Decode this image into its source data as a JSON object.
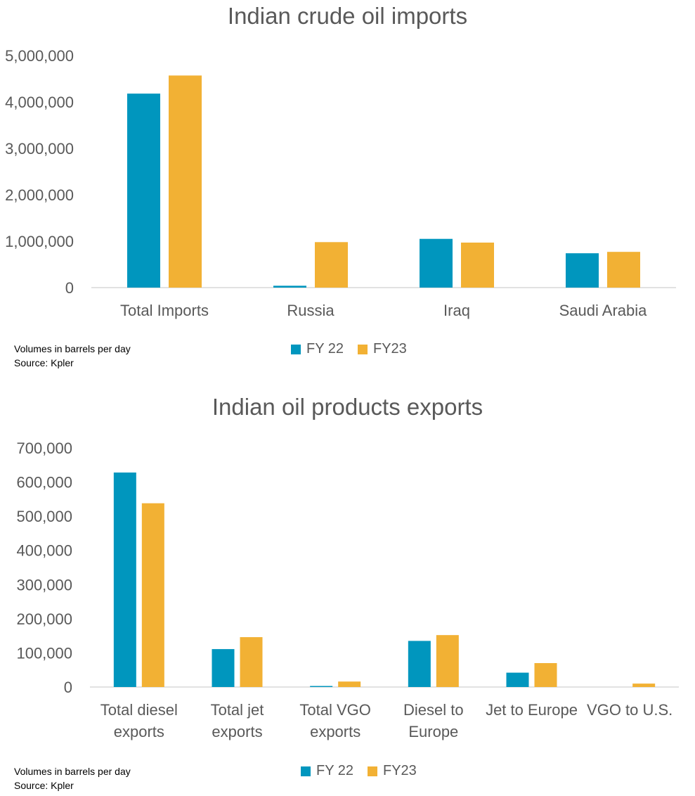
{
  "colors": {
    "fy22": "#0096BE",
    "fy23": "#F2B134",
    "axis": "#D9D9D9",
    "text": "#595959"
  },
  "chart_data": [
    {
      "type": "bar",
      "title": "Indian crude oil imports",
      "categories": [
        [
          "Total Imports"
        ],
        [
          "Russia"
        ],
        [
          "Iraq"
        ],
        [
          "Saudi Arabia"
        ]
      ],
      "series": [
        {
          "name": "FY 22",
          "values": [
            4180000,
            40000,
            1050000,
            740000
          ]
        },
        {
          "name": "FY23",
          "values": [
            4570000,
            980000,
            970000,
            770000
          ]
        }
      ],
      "yticks": [
        "0",
        "1,000,000",
        "2,000,000",
        "3,000,000",
        "4,000,000",
        "5,000,000"
      ],
      "ylim": [
        0,
        5000000
      ],
      "xlabel": "",
      "ylabel": "",
      "legend_position": "bottom",
      "notes": [
        "Volumes in barrels per day",
        "Source: Kpler"
      ]
    },
    {
      "type": "bar",
      "title": "Indian oil products exports",
      "categories": [
        [
          "Total diesel",
          "exports"
        ],
        [
          "Total jet",
          "exports"
        ],
        [
          "Total VGO",
          "exports"
        ],
        [
          "Diesel to",
          "Europe"
        ],
        [
          "Jet to Europe"
        ],
        [
          "VGO to U.S."
        ]
      ],
      "series": [
        {
          "name": "FY 22",
          "values": [
            628000,
            111000,
            3000,
            135000,
            42000,
            0
          ]
        },
        {
          "name": "FY23",
          "values": [
            538000,
            146000,
            16000,
            152000,
            70000,
            10000
          ]
        }
      ],
      "yticks": [
        "0",
        "100,000",
        "200,000",
        "300,000",
        "400,000",
        "500,000",
        "600,000",
        "700,000"
      ],
      "ylim": [
        0,
        700000
      ],
      "xlabel": "",
      "ylabel": "",
      "legend_position": "bottom",
      "notes": [
        "Volumes in barrels per day",
        "Source: Kpler"
      ]
    }
  ]
}
